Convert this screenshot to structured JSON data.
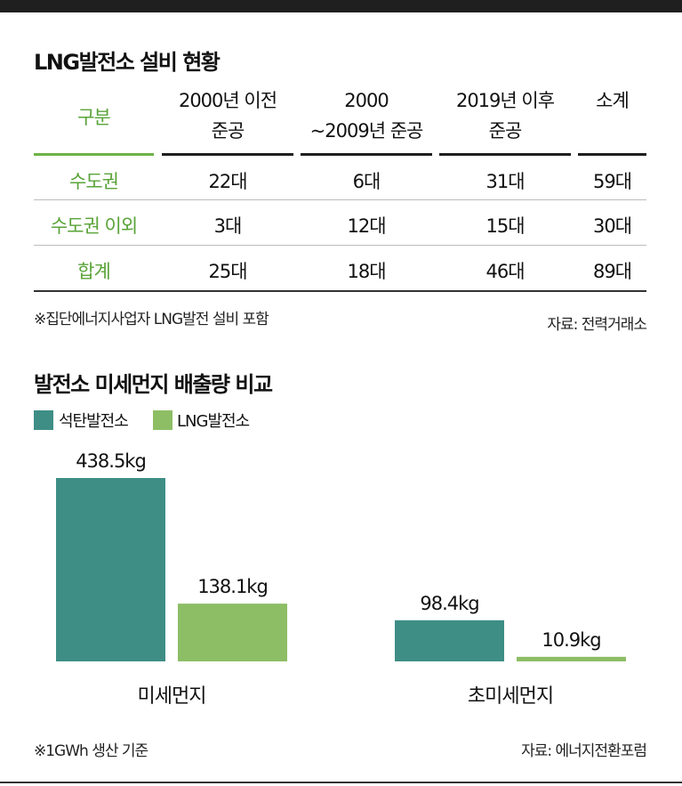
{
  "table": {
    "title": "LNG발전소 설비 현황",
    "corner_label": "구분",
    "columns": [
      {
        "line1": "2000년 이전",
        "line2": "준공"
      },
      {
        "line1": "2000",
        "line2": "~2009년 준공"
      },
      {
        "line1": "2019년 이후",
        "line2": "준공"
      },
      {
        "line1": "소계",
        "line2": ""
      }
    ],
    "rows": [
      {
        "label": "수도권",
        "cells": [
          "22대",
          "6대",
          "31대",
          "59대"
        ]
      },
      {
        "label": "수도권 이외",
        "cells": [
          "3대",
          "12대",
          "15대",
          "30대"
        ]
      },
      {
        "label": "합계",
        "cells": [
          "25대",
          "18대",
          "46대",
          "89대"
        ]
      }
    ],
    "note": "※집단에너지사업자 LNG발전 설비 포함",
    "source": "자료: 전력거래소"
  },
  "chart": {
    "title": "발전소 미세먼지 배출량 비교",
    "note": "※1GWh 생산 기준",
    "source": "자료: 에너지전환포럼"
  },
  "colors": {
    "coal": "#3e8e86",
    "lng": "#8dbe66",
    "accent_green": "#5aa339"
  },
  "chart_data": {
    "type": "bar",
    "categories": [
      "미세먼지",
      "초미세먼지"
    ],
    "series": [
      {
        "name": "석탄발전소",
        "values": [
          438.5,
          98.4
        ],
        "labels": [
          "438.5kg",
          "98.4kg"
        ]
      },
      {
        "name": "LNG발전소",
        "values": [
          138.1,
          10.9
        ],
        "labels": [
          "138.1kg",
          "10.9kg"
        ]
      }
    ],
    "title": "발전소 미세먼지 배출량 비교",
    "legend": "top-left",
    "grid": false
  }
}
